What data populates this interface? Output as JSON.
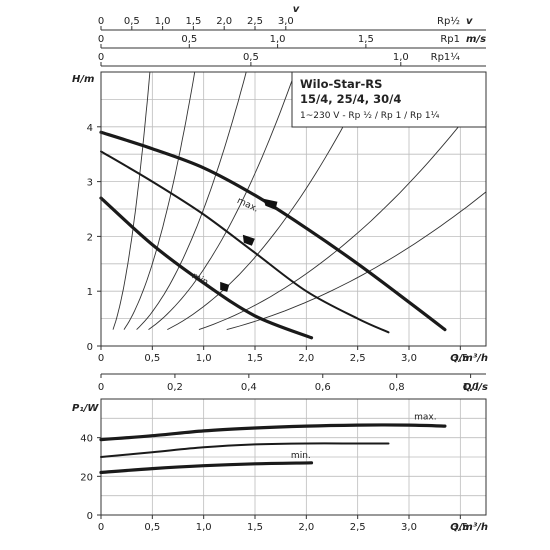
{
  "chart_data": [
    {
      "type": "line",
      "title": "Wilo-Star-RS",
      "subtitle": "15/4, 25/4, 30/4",
      "note": "1~230 V - Rp ½ / Rp 1 / Rp 1¼",
      "xlabel": "Q/m³/h",
      "ylabel": "H/m",
      "xlim": [
        0,
        3.75
      ],
      "ylim": [
        0,
        5
      ],
      "x_ticks": [
        "0",
        "0,5",
        "1,0",
        "1,5",
        "2,0",
        "2,5",
        "3,0",
        "3,5"
      ],
      "y_ticks": [
        "0",
        "1",
        "2",
        "3",
        "4"
      ],
      "grid": true,
      "series": [
        {
          "name": "max.",
          "x": [
            0,
            0.5,
            1.0,
            1.5,
            2.0,
            2.5,
            3.0,
            3.35
          ],
          "y": [
            3.9,
            3.6,
            3.25,
            2.75,
            2.15,
            1.5,
            0.8,
            0.3
          ]
        },
        {
          "name": "",
          "x": [
            0,
            0.5,
            1.0,
            1.5,
            2.0,
            2.5,
            2.8
          ],
          "y": [
            3.55,
            3.0,
            2.4,
            1.7,
            1.0,
            0.5,
            0.25
          ]
        },
        {
          "name": "min.",
          "x": [
            0,
            0.5,
            1.0,
            1.5,
            2.05
          ],
          "y": [
            2.7,
            1.85,
            1.15,
            0.55,
            0.15
          ]
        }
      ],
      "secondary_axes": [
        {
          "label": "v",
          "unit": "Rp½",
          "ticks": [
            {
              "v": 0,
              "t": "0"
            },
            {
              "v": 0.5,
              "t": "0,5"
            },
            {
              "v": 1.0,
              "t": "1,0"
            },
            {
              "v": 1.5,
              "t": "1,5"
            },
            {
              "v": 2.0,
              "t": "2,0"
            },
            {
              "v": 2.5,
              "t": "2,5"
            },
            {
              "v": 3.0,
              "t": "3,0"
            }
          ],
          "q_per_unit": 0.6
        },
        {
          "label": "m/s",
          "unit": "Rp1",
          "ticks": [
            {
              "v": 0,
              "t": "0"
            },
            {
              "v": 0.5,
              "t": "0,5"
            },
            {
              "v": 1.0,
              "t": "1,0"
            },
            {
              "v": 1.5,
              "t": "1,5"
            }
          ],
          "q_per_unit": 1.72
        },
        {
          "label": "",
          "unit": "Rp1¼",
          "ticks": [
            {
              "v": 0,
              "t": "0"
            },
            {
              "v": 0.5,
              "t": "0,5"
            },
            {
              "v": 1.0,
              "t": "1,0"
            }
          ],
          "q_per_unit": 2.92
        }
      ],
      "secondary_bottom_axis": {
        "label": "Q/l/s",
        "ticks": [
          {
            "v": 0,
            "t": "0"
          },
          {
            "v": 0.2,
            "t": "0,2"
          },
          {
            "v": 0.4,
            "t": "0,4"
          },
          {
            "v": 0.6,
            "t": "0,6"
          },
          {
            "v": 0.8,
            "t": "0,8"
          },
          {
            "v": 1.0,
            "t": "1,0"
          }
        ],
        "q_per_unit": 3.6
      },
      "system_curves_k": [
        22,
        6,
        2.5,
        1.4,
        0.72,
        0.33,
        0.2
      ]
    },
    {
      "type": "line",
      "xlabel": "Q/m³/h",
      "ylabel": "P₁/W",
      "xlim": [
        0,
        3.75
      ],
      "ylim": [
        0,
        60
      ],
      "x_ticks": [
        "0",
        "0,5",
        "1,0",
        "1,5",
        "2,0",
        "2,5",
        "3,0",
        "3,5"
      ],
      "y_ticks": [
        "0",
        "20",
        "40"
      ],
      "grid": true,
      "series": [
        {
          "name": "max.",
          "x": [
            0,
            0.5,
            1.0,
            1.5,
            2.0,
            2.5,
            3.0,
            3.35
          ],
          "y": [
            39,
            41,
            43.5,
            45,
            46,
            46.5,
            46.5,
            46
          ]
        },
        {
          "name": "",
          "x": [
            0,
            0.5,
            1.0,
            1.5,
            2.0,
            2.5,
            2.8
          ],
          "y": [
            30,
            32.5,
            35,
            36.5,
            37,
            37,
            37
          ]
        },
        {
          "name": "min.",
          "x": [
            0,
            0.5,
            1.0,
            1.5,
            2.05
          ],
          "y": [
            22,
            24,
            25.5,
            26.5,
            27
          ]
        }
      ]
    }
  ]
}
